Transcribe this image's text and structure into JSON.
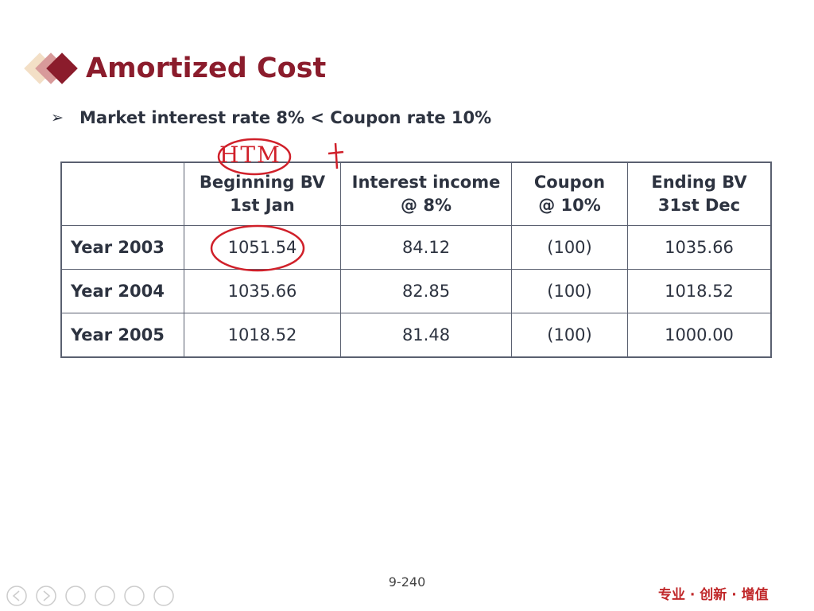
{
  "header": {
    "title": "Amortized Cost",
    "bullet": "Market interest rate 8% < Coupon rate 10%"
  },
  "annotation": {
    "handwritten": "HTM"
  },
  "table": {
    "columns": [
      [
        "Beginning BV",
        "1st Jan"
      ],
      [
        "Interest income",
        "@ 8%"
      ],
      [
        "Coupon",
        "@ 10%"
      ],
      [
        "Ending BV",
        "31st Dec"
      ]
    ],
    "rows": [
      {
        "label": "Year 2003",
        "cells": [
          "1051.54",
          "84.12",
          "(100)",
          "1035.66"
        ]
      },
      {
        "label": "Year 2004",
        "cells": [
          "1035.66",
          "82.85",
          "(100)",
          "1018.52"
        ]
      },
      {
        "label": "Year 2005",
        "cells": [
          "1018.52",
          "81.48",
          "(100)",
          "1000.00"
        ]
      }
    ]
  },
  "footer": {
    "page": "9-240",
    "brand": "专业 · 创新 · 增值"
  }
}
